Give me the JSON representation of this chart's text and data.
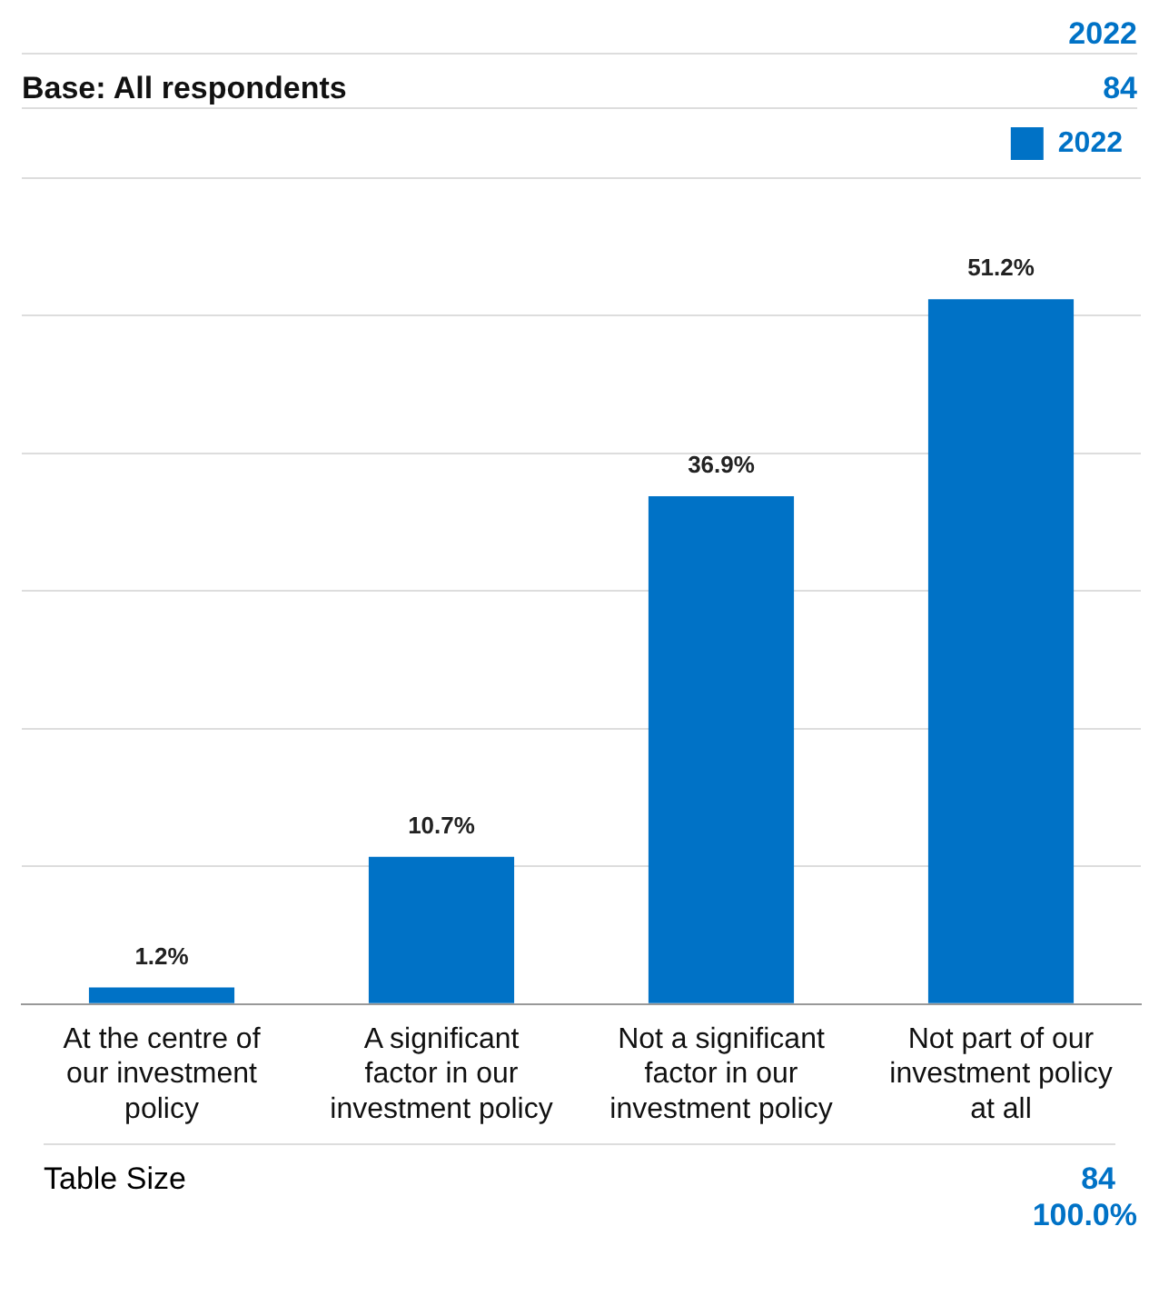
{
  "chart_data": {
    "type": "bar",
    "categories": [
      "At the centre of our investment policy",
      "A significant factor in our investment policy",
      "Not a significant factor in our investment policy",
      "Not part of our investment policy at all"
    ],
    "series": [
      {
        "name": "2022",
        "color": "#0072c6",
        "values": [
          1.2,
          10.7,
          36.9,
          51.2
        ],
        "value_labels": [
          "1.2%",
          "10.7%",
          "36.9%",
          "51.2%"
        ]
      }
    ],
    "tick_labels": "x",
    "grid": "y",
    "legend": "top right",
    "annotations": [
      "2022",
      "Base: All respondents",
      "84",
      "Table Size",
      "84",
      "100.0%"
    ]
  }
}
